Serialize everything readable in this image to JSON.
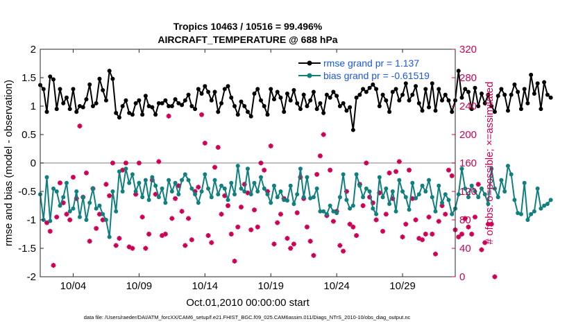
{
  "chart_data": {
    "type": "line",
    "title": "Tropics 10463 / 10516 = 99.496%",
    "subtitle": "AIRCRAFT_TEMPERATURE @ 688 hPa",
    "xlabel": "Oct.01,2010 00:00:00 start",
    "ylabel_left": "rmse and bias (model - observation)",
    "ylabel_right": "# of obs: o=possible; ×=assimilated",
    "footer": "data file: /Users/raeder/DAI/ATM_forcXX/CAM6_setup/f.e21.FHIST_BGC.f09_025.CAM6assim.011/Diags_NTrS_2010-10/obs_diag_output.nc",
    "xlim_days": [
      0.5,
      32.0
    ],
    "ylim_left": [
      -2,
      2
    ],
    "ylim_right": [
      0,
      320
    ],
    "x_ticks": [
      {
        "day": 3,
        "label": "10/04"
      },
      {
        "day": 8,
        "label": "10/09"
      },
      {
        "day": 13,
        "label": "10/14"
      },
      {
        "day": 18,
        "label": "10/19"
      },
      {
        "day": 23,
        "label": "10/24"
      },
      {
        "day": 28,
        "label": "10/29"
      }
    ],
    "y_ticks_left": [
      -2,
      -1.5,
      -1,
      -0.5,
      0,
      0.5,
      1,
      1.5,
      2
    ],
    "y_ticks_right": [
      0,
      40,
      80,
      120,
      160,
      200,
      240,
      280,
      320
    ],
    "legend": [
      {
        "label": "rmse grand pr = 1.137",
        "color": "#000000"
      },
      {
        "label": "bias grand pr = -0.61519",
        "color": "#0f7f7f"
      }
    ],
    "colors": {
      "rmse": "#000000",
      "bias": "#0f7f7f",
      "obs": "#cc0055",
      "legend_text": "#1a56e8",
      "zero_line": "#aaaaaa"
    },
    "x_step_days": 0.25,
    "series": [
      {
        "name": "rmse",
        "x_start": 0.5,
        "values": [
          1.37,
          1.3,
          0.9,
          1.52,
          1.47,
          0.95,
          1.3,
          1.05,
          1.15,
          0.95,
          1.3,
          0.9,
          1.0,
          0.98,
          1.12,
          1.38,
          1.0,
          1.05,
          1.48,
          1.28,
          1.1,
          1.62,
          1.48,
          0.88,
          0.8,
          1.0,
          1.1,
          0.88,
          0.85,
          1.05,
          1.1,
          0.85,
          1.18,
          1.0,
          0.98,
          0.85,
          1.05,
          1.05,
          1.1,
          1.0,
          1.0,
          1.12,
          1.05,
          1.02,
          1.1,
          1.2,
          1.0,
          0.95,
          1.3,
          1.22,
          1.35,
          1.25,
          1.1,
          1.25,
          0.9,
          1.05,
          1.3,
          1.35,
          1.15,
          1.0,
          0.85,
          1.08,
          1.0,
          0.9,
          0.82,
          1.22,
          1.3,
          1.1,
          1.0,
          0.85,
          1.3,
          1.12,
          1.25,
          1.15,
          0.9,
          1.22,
          1.1,
          1.28,
          1.05,
          0.95,
          1.2,
          1.0,
          1.1,
          1.25,
          0.95,
          1.05,
          0.88,
          1.2,
          1.15,
          1.25,
          1.18,
          1.0,
          1.05,
          0.92,
          0.98,
          0.58,
          1.15,
          1.2,
          1.3,
          1.25,
          1.32,
          1.38,
          1.3,
          1.0,
          1.2,
          1.1,
          0.9,
          1.25,
          1.3,
          1.1,
          1.2,
          1.4,
          1.1,
          1.2,
          1.35,
          1.05,
          0.92,
          1.3,
          0.98,
          1.4,
          0.92,
          1.3,
          1.1,
          1.2,
          1.1,
          0.9,
          1.1,
          1.62,
          1.15,
          1.3,
          1.25,
          0.95,
          1.32,
          1.0,
          1.22,
          1.05,
          1.2,
          1.0,
          0.9,
          1.18,
          1.3,
          1.2,
          0.92,
          1.2,
          1.38,
          1.25,
          0.95,
          1.3,
          1.05,
          1.55,
          1.22,
          1.4,
          0.95,
          1.42,
          1.2,
          1.15
        ]
      },
      {
        "name": "bias",
        "x_start": 0.5,
        "values": [
          -0.55,
          -1.0,
          -0.25,
          -1.02,
          -0.45,
          -0.5,
          -0.75,
          -0.6,
          -0.35,
          -0.85,
          -0.8,
          -0.5,
          -0.95,
          -0.6,
          -1.0,
          -0.7,
          -0.45,
          -0.8,
          -0.75,
          -0.9,
          -1.0,
          -1.3,
          -0.5,
          -0.85,
          -0.15,
          -0.5,
          -0.1,
          -0.35,
          -0.2,
          -0.5,
          -0.35,
          -0.6,
          -0.3,
          -0.65,
          -0.25,
          -0.4,
          -0.6,
          -0.45,
          -0.7,
          -0.3,
          -0.5,
          -0.35,
          -0.55,
          -0.3,
          -0.2,
          -0.3,
          -0.45,
          -0.55,
          -0.7,
          -0.5,
          -0.2,
          -0.45,
          -0.6,
          -0.3,
          -0.55,
          -0.4,
          -0.45,
          -0.65,
          -0.35,
          -0.55,
          -0.05,
          -0.45,
          -0.5,
          -0.1,
          -0.55,
          -0.35,
          -0.5,
          -0.25,
          -0.45,
          -0.55,
          -0.7,
          -0.4,
          -0.6,
          -0.5,
          -0.65,
          -0.66,
          -0.4,
          -0.72,
          -0.55,
          -0.1,
          -0.6,
          -0.25,
          -0.62,
          -0.6,
          -0.45,
          -0.85,
          -0.85,
          -0.9,
          -0.75,
          -0.85,
          -0.88,
          -0.6,
          -0.2,
          -0.65,
          -0.8,
          -0.75,
          -0.2,
          -0.4,
          -0.6,
          -0.45,
          -0.5,
          -0.8,
          -0.9,
          -0.25,
          -0.6,
          -0.45,
          -0.72,
          -0.5,
          -0.85,
          -0.3,
          -0.5,
          -0.6,
          -0.82,
          -0.35,
          -0.62,
          -0.55,
          -0.4,
          -0.5,
          -0.3,
          -0.6,
          -0.85,
          -0.4,
          -0.7,
          -0.55,
          -0.65,
          -0.9,
          -0.8,
          -0.55,
          -0.1,
          -0.45,
          -0.6,
          -0.4,
          -0.5,
          -0.6,
          -0.45,
          -0.55,
          -0.72,
          -0.1,
          -0.45,
          -0.6,
          -0.3,
          -0.5,
          -0.05,
          -0.2,
          -0.65,
          -0.88,
          -0.9,
          -0.35,
          -1.0,
          -0.9,
          -0.85,
          -0.45,
          -0.8,
          -0.75,
          -0.72,
          -0.65
        ]
      },
      {
        "name": "obs_assimilated",
        "x_start": 1.0,
        "values": [
          76,
          64,
          16,
          84,
          132,
          104,
          88,
          80,
          140,
          110,
          212,
          112,
          146,
          50,
          124,
          68,
          88,
          80,
          130,
          114,
          160,
          44,
          54,
          150,
          160,
          42,
          40,
          116,
          160,
          84,
          40,
          60,
          136,
          116,
          162,
          58,
          60,
          226,
          82,
          110,
          128,
          92,
          44,
          82,
          52,
          120,
          126,
          228,
          188,
          58,
          48,
          154,
          182,
          88,
          114,
          100,
          60,
          22,
          70,
          98,
          130,
          118,
          66,
          94,
          70,
          160,
          150,
          120,
          184,
          46,
          76,
          88,
          110,
          54,
          40,
          46,
          90,
          140,
          110,
          70,
          50,
          30,
          144,
          170,
          200,
          86,
          150,
          78,
          92,
          44,
          36,
          120,
          74,
          70,
          58,
          130,
          100,
          160,
          112,
          104,
          80,
          118,
          64,
          88,
          146,
          110,
          148,
          162,
          56,
          74,
          150,
          110,
          80,
          54,
          52,
          60,
          84,
          60,
          32,
          78,
          100,
          88,
          150,
          142,
          66,
          56,
          60,
          82,
          70,
          60,
          84,
          130,
          38,
          48,
          74,
          74,
          0
        ]
      }
    ]
  }
}
